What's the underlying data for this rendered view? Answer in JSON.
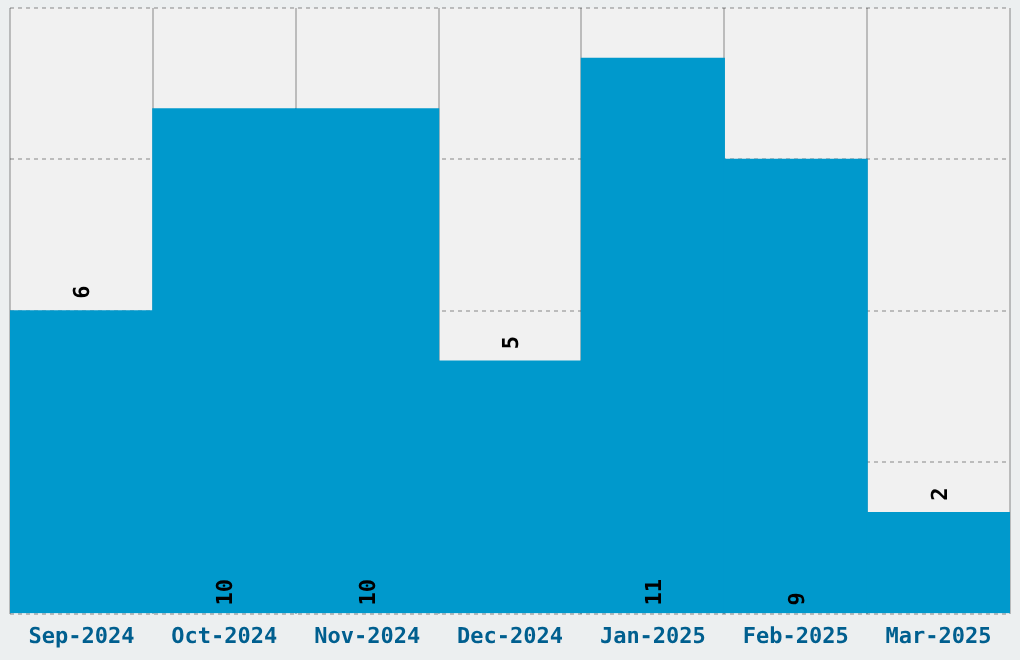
{
  "chart_data": {
    "type": "bar",
    "categories": [
      "Sep-2024",
      "Oct-2024",
      "Nov-2024",
      "Dec-2024",
      "Jan-2025",
      "Feb-2025",
      "Mar-2025"
    ],
    "values": [
      6,
      10,
      10,
      5,
      11,
      9,
      2
    ],
    "color": "#0099cc",
    "ylim": [
      0,
      12
    ],
    "yticks": [
      0,
      3,
      6,
      9,
      12
    ],
    "grid": true,
    "tick_labels": "x",
    "data_labels": true
  }
}
